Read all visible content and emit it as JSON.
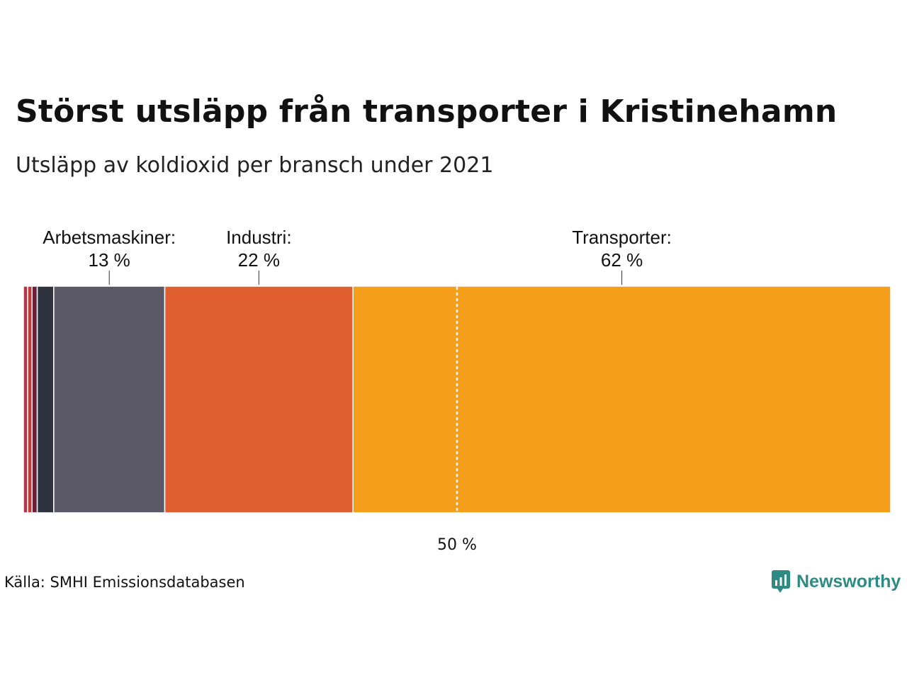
{
  "title": "Störst utsläpp från transporter i Kristinehamn",
  "subtitle": "Utsläpp av koldioxid per bransch under 2021",
  "source": "Källa: SMHI Emissionsdatabasen",
  "logo": {
    "text": "Newsworthy",
    "icon": "newsworthy-logo-icon",
    "color": "#2e8b83"
  },
  "chart_data": {
    "type": "bar",
    "orientation": "horizontal-stacked",
    "unit": "%",
    "xlim": [
      0,
      100
    ],
    "segments": [
      {
        "value": 0.5,
        "color": "#b0384a"
      },
      {
        "value": 0.5,
        "color": "#c23a3a"
      },
      {
        "value": 0.6,
        "color": "#6b1f3a"
      },
      {
        "value": 1.9,
        "color": "#30313f"
      },
      {
        "value": 12.8,
        "color": "#5b5966",
        "label": "Arbetsmaskiner:",
        "value_label": "13 %"
      },
      {
        "value": 21.7,
        "color": "#e05e2f",
        "label": "Industri:",
        "value_label": "22 %"
      },
      {
        "value": 62.0,
        "color": "#f59e1a",
        "label": "Transporter:",
        "value_label": "62 %"
      }
    ],
    "reference_line": {
      "value": 50,
      "label": "50 %",
      "style": "dotted"
    }
  }
}
